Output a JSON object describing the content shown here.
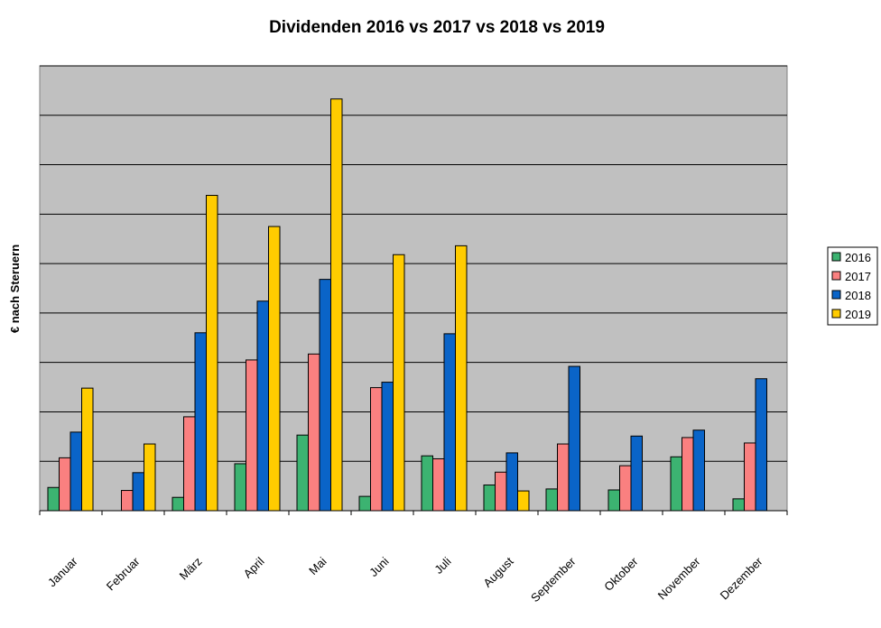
{
  "chart_data": {
    "type": "bar",
    "title": "Dividenden 2016 vs 2017 vs 2018 vs 2019",
    "xlabel": "",
    "ylabel": "€ nach Steruern",
    "categories": [
      "Januar",
      "Februar",
      "März",
      "April",
      "Mai",
      "Juni",
      "Juli",
      "August",
      "September",
      "Oktober",
      "November",
      "Dezember"
    ],
    "ylim": [
      0,
      9
    ],
    "grid": true,
    "legend_position": "right",
    "series": [
      {
        "name": "2016",
        "color": "#3cb371",
        "values": [
          0.47,
          0,
          0.27,
          0.95,
          1.53,
          0.29,
          1.11,
          0.52,
          0.44,
          0.42,
          1.09,
          0.24
        ]
      },
      {
        "name": "2017",
        "color": "#fa8080",
        "values": [
          1.07,
          0.41,
          1.9,
          3.05,
          3.17,
          2.49,
          1.05,
          0.78,
          1.35,
          0.91,
          1.48,
          1.37
        ]
      },
      {
        "name": "2018",
        "color": "#0a64c8",
        "values": [
          1.59,
          0.77,
          3.6,
          4.24,
          4.68,
          2.6,
          3.58,
          1.17,
          2.92,
          1.51,
          1.63,
          2.67
        ]
      },
      {
        "name": "2019",
        "color": "#ffcc00",
        "values": [
          2.48,
          1.35,
          6.38,
          5.75,
          8.33,
          5.18,
          5.36,
          0.4,
          0,
          0,
          0,
          0
        ]
      }
    ]
  }
}
